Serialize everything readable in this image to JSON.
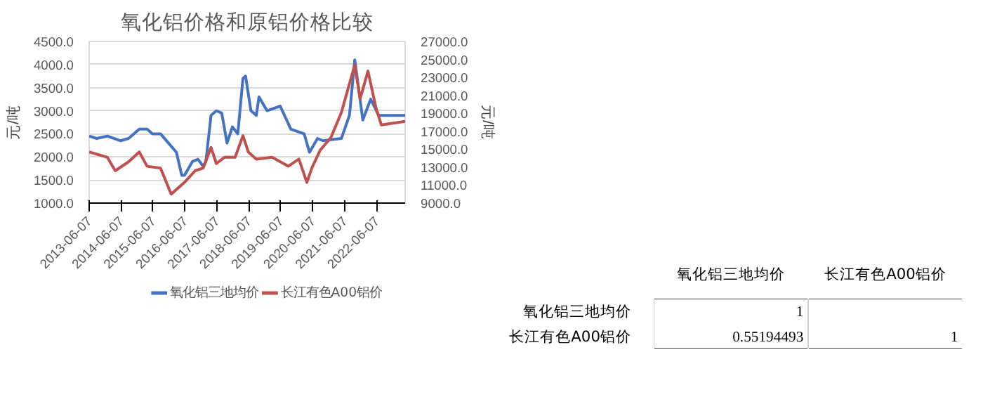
{
  "chart_data": [
    {
      "type": "line",
      "title": "氧化铝价格和原铝价格比较",
      "ylabel": "元/吨",
      "y2label": "元/吨",
      "xlim": [
        "2013-06-07",
        "2023-04-30"
      ],
      "xticks": [
        "2013-06-07",
        "2014-06-07",
        "2015-06-07",
        "2016-06-07",
        "2017-06-07",
        "2018-06-07",
        "2019-06-07",
        "2020-06-07",
        "2021-06-07",
        "2022-06-07"
      ],
      "ylim": [
        1000,
        4500
      ],
      "yticks": [
        {
          "value": 1000,
          "label": "1000.0"
        },
        {
          "value": 1500,
          "label": "1500.0"
        },
        {
          "value": 2000,
          "label": "2000.0"
        },
        {
          "value": 2500,
          "label": "2500.0"
        },
        {
          "value": 3000,
          "label": "3000.0"
        },
        {
          "value": 3500,
          "label": "3500.0"
        },
        {
          "value": 4000,
          "label": "4000.0"
        },
        {
          "value": 4500,
          "label": "4500.0"
        }
      ],
      "y2lim": [
        9000,
        27000
      ],
      "y2ticks": [
        {
          "value": 9000,
          "label": "9000.0"
        },
        {
          "value": 11000,
          "label": "11000.0"
        },
        {
          "value": 13000,
          "label": "13000.0"
        },
        {
          "value": 15000,
          "label": "15000.0"
        },
        {
          "value": 17000,
          "label": "17000.0"
        },
        {
          "value": 19000,
          "label": "19000.0"
        },
        {
          "value": 21000,
          "label": "21000.0"
        },
        {
          "value": 23000,
          "label": "23000.0"
        },
        {
          "value": 25000,
          "label": "25000.0"
        },
        {
          "value": 27000,
          "label": "27000.0"
        }
      ],
      "grid": "y",
      "legend": "bottom",
      "line_style": "solid",
      "marker": "none",
      "series": [
        {
          "name": "氧化铝三地均价",
          "color": "#4472c4",
          "x": [
            "2013-06-07",
            "2013-09",
            "2014-01",
            "2014-06",
            "2014-09",
            "2015-01",
            "2015-04",
            "2015-06",
            "2015-08",
            "2015-09",
            "2015-12",
            "2016-03",
            "2016-05",
            "2016-06",
            "2016-09",
            "2016-11",
            "2017-01",
            "2017-02",
            "2017-04",
            "2017-06",
            "2017-08",
            "2017-10",
            "2017-12",
            "2018-02",
            "2018-04",
            "2018-05",
            "2018-07",
            "2018-09",
            "2018-10",
            "2019-01",
            "2019-06",
            "2019-10",
            "2020-03",
            "2020-05",
            "2020-08",
            "2020-10",
            "2021-05",
            "2021-08",
            "2021-10",
            "2022-01",
            "2022-04",
            "2022-07",
            "2022-09",
            "2023-04-30"
          ],
          "values": [
            2450,
            2400,
            2450,
            2350,
            2400,
            2600,
            2600,
            2500,
            2500,
            2500,
            2300,
            2100,
            1600,
            1600,
            1900,
            1950,
            1800,
            1900,
            2900,
            3000,
            2950,
            2300,
            2650,
            2500,
            3700,
            3750,
            3000,
            2900,
            3300,
            3000,
            3100,
            2600,
            2500,
            2100,
            2400,
            2350,
            2400,
            2900,
            4100,
            2800,
            3250,
            2900,
            2900,
            2900
          ]
        },
        {
          "name": "长江有色A00铝价",
          "color": "#c0504d",
          "axis": "y2",
          "x": [
            "2013-06-07",
            "2014-01",
            "2014-04",
            "2014-09",
            "2015-01",
            "2015-04",
            "2015-09",
            "2016-01",
            "2016-06",
            "2016-10",
            "2017-01",
            "2017-04",
            "2017-06",
            "2017-09",
            "2018-01",
            "2018-04",
            "2018-06",
            "2018-09",
            "2019-03",
            "2019-09",
            "2020-01",
            "2020-04",
            "2020-06",
            "2020-09",
            "2021-01",
            "2021-05",
            "2021-10",
            "2021-12",
            "2022-03",
            "2022-06",
            "2022-08",
            "2023-04-30"
          ],
          "values": [
            14700,
            14100,
            12600,
            13600,
            14700,
            13100,
            12900,
            10000,
            11300,
            12600,
            12900,
            15200,
            13400,
            14100,
            14100,
            16500,
            14700,
            13900,
            14100,
            13100,
            13900,
            11300,
            13000,
            14900,
            16300,
            19100,
            24400,
            20600,
            23700,
            19600,
            17700,
            18100
          ]
        }
      ]
    },
    {
      "type": "heatmap",
      "categories": [
        "氧化铝三地均价",
        "长江有色A00铝价"
      ],
      "y_categories": [
        "氧化铝三地均价",
        "长江有色A00铝价"
      ],
      "cells": [
        [
          1,
          null
        ],
        [
          0.55194493,
          1
        ]
      ],
      "data_labels": true
    }
  ]
}
